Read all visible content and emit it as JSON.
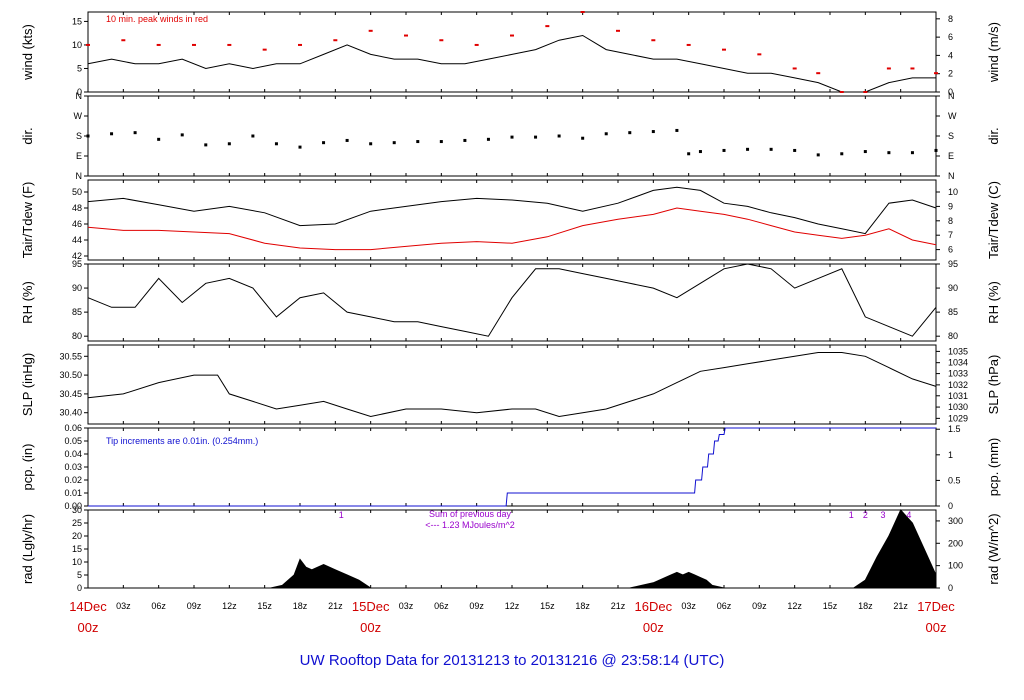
{
  "title": "UW Rooftop Data for 20131213  to  20131216 @ 23:58:14  (UTC)",
  "colors": {
    "trace": "#000000",
    "red": "#e00000",
    "blue": "#1010d0",
    "purple": "#9900cc",
    "major_label": "#d00000"
  },
  "time_axis": {
    "hours_total": 72,
    "major_ticks": [
      {
        "hour": 0,
        "day": "14Dec",
        "zone": "00z"
      },
      {
        "hour": 24,
        "day": "15Dec",
        "zone": "00z"
      },
      {
        "hour": 48,
        "day": "16Dec",
        "zone": "00z"
      },
      {
        "hour": 72,
        "day": "17Dec",
        "zone": "00z"
      }
    ],
    "minor_hours": [
      3,
      6,
      9,
      12,
      15,
      18,
      21
    ],
    "minor_labels": [
      "03z",
      "06z",
      "09z",
      "12z",
      "15z",
      "18z",
      "21z"
    ]
  },
  "chart_data": [
    {
      "type": "line",
      "id": "wind",
      "ylabel": "wind (kts)",
      "ylabel_right": "wind (m/s)",
      "ylim": [
        0,
        17
      ],
      "yticks": [
        "0",
        "5",
        "10",
        "15"
      ],
      "ytick_values": [
        0,
        5,
        10,
        15
      ],
      "yticks_right": [
        "0",
        "2",
        "4",
        "6",
        "8"
      ],
      "ytick_right_values": [
        0,
        3.89,
        7.78,
        11.66,
        15.55
      ],
      "annotation": "10 min. peak winds in red",
      "series": [
        {
          "role": "wind",
          "color": "black",
          "x": [
            0,
            2,
            4,
            6,
            8,
            10,
            12,
            14,
            16,
            18,
            20,
            22,
            24,
            26,
            28,
            30,
            32,
            34,
            36,
            38,
            40,
            42,
            44,
            46,
            48,
            50,
            52,
            54,
            56,
            58,
            60,
            62,
            64,
            66,
            68,
            70,
            72
          ],
          "values": [
            6,
            7,
            6,
            6,
            7,
            5,
            6,
            5,
            6,
            6,
            8,
            10,
            8,
            7,
            7,
            6,
            6,
            7,
            8,
            9,
            11,
            12,
            9,
            8,
            7,
            7,
            6,
            5,
            4,
            4,
            3,
            2,
            0,
            0,
            2,
            3,
            3
          ]
        },
        {
          "role": "peak",
          "color": "red",
          "x": [
            0,
            3,
            6,
            9,
            12,
            15,
            18,
            21,
            24,
            27,
            30,
            33,
            36,
            39,
            42,
            45,
            48,
            51,
            54,
            57,
            60,
            62,
            64,
            66,
            68,
            70,
            72
          ],
          "values": [
            10,
            11,
            10,
            10,
            10,
            9,
            10,
            11,
            13,
            12,
            11,
            10,
            12,
            14,
            17,
            13,
            11,
            10,
            9,
            8,
            5,
            4,
            0,
            0,
            5,
            5,
            4
          ]
        }
      ]
    },
    {
      "type": "scatter",
      "id": "dir",
      "ylabel": "dir.",
      "ylabel_right": "dir.",
      "ylim": [
        0,
        360
      ],
      "yticks": [
        "N",
        "E",
        "S",
        "W",
        "N"
      ],
      "ytick_values": [
        0,
        90,
        180,
        270,
        360
      ],
      "x": [
        0,
        2,
        4,
        6,
        8,
        10,
        12,
        14,
        16,
        18,
        20,
        22,
        24,
        26,
        28,
        30,
        32,
        34,
        36,
        38,
        40,
        42,
        44,
        46,
        48,
        50,
        51,
        52,
        54,
        56,
        58,
        60,
        62,
        64,
        66,
        68,
        70,
        72
      ],
      "values": [
        180,
        190,
        195,
        165,
        185,
        140,
        145,
        180,
        145,
        130,
        150,
        160,
        145,
        150,
        155,
        155,
        160,
        165,
        175,
        175,
        180,
        170,
        190,
        195,
        200,
        205,
        100,
        110,
        115,
        120,
        120,
        115,
        95,
        100,
        110,
        105,
        105,
        115
      ]
    },
    {
      "type": "line",
      "id": "temp",
      "ylabel": "Tair/Tdew (F)",
      "ylabel_right": "Tair/Tdew (C)",
      "ylim": [
        41.5,
        51.5
      ],
      "yticks": [
        "42",
        "44",
        "46",
        "48",
        "50"
      ],
      "ytick_values": [
        42,
        44,
        46,
        48,
        50
      ],
      "yticks_right": [
        "6",
        "7",
        "8",
        "9",
        "10"
      ],
      "ytick_right_values": [
        42.8,
        44.6,
        46.4,
        48.2,
        50
      ],
      "series": [
        {
          "name": "Tair",
          "color": "black",
          "x": [
            0,
            3,
            6,
            9,
            12,
            15,
            18,
            21,
            24,
            27,
            30,
            33,
            36,
            39,
            42,
            45,
            48,
            50,
            52,
            54,
            56,
            58,
            60,
            62,
            64,
            66,
            68,
            70,
            72
          ],
          "values": [
            48.8,
            49.2,
            48.4,
            47.6,
            48.2,
            47.4,
            45.8,
            46.0,
            47.6,
            48.2,
            48.8,
            49.2,
            49.0,
            48.6,
            47.6,
            48.6,
            50.2,
            50.6,
            50.2,
            48.6,
            48.2,
            47.4,
            46.8,
            46.0,
            45.4,
            44.8,
            48.6,
            49.0,
            48.0
          ]
        },
        {
          "name": "Tdew",
          "color": "red",
          "x": [
            0,
            3,
            6,
            9,
            12,
            15,
            18,
            21,
            24,
            27,
            30,
            33,
            36,
            39,
            42,
            45,
            48,
            50,
            52,
            54,
            56,
            58,
            60,
            62,
            64,
            66,
            68,
            70,
            72
          ],
          "values": [
            45.6,
            45.2,
            45.2,
            45.0,
            44.8,
            43.6,
            43.0,
            42.8,
            42.8,
            43.2,
            43.6,
            43.8,
            43.6,
            44.4,
            45.8,
            46.6,
            47.2,
            48.0,
            47.6,
            47.2,
            46.6,
            45.8,
            45.0,
            44.6,
            44.2,
            44.6,
            45.4,
            44.0,
            43.4
          ]
        }
      ]
    },
    {
      "type": "line",
      "id": "rh",
      "ylabel": "RH (%)",
      "ylabel_right": "RH (%)",
      "ylim": [
        79,
        95
      ],
      "yticks": [
        "80",
        "85",
        "90",
        "95"
      ],
      "ytick_values": [
        80,
        85,
        90,
        95
      ],
      "x": [
        0,
        2,
        4,
        6,
        8,
        10,
        12,
        14,
        16,
        18,
        20,
        22,
        24,
        26,
        28,
        30,
        32,
        34,
        36,
        38,
        40,
        42,
        44,
        46,
        48,
        50,
        52,
        54,
        56,
        58,
        60,
        62,
        64,
        66,
        68,
        70,
        72
      ],
      "values": [
        88,
        86,
        86,
        92,
        87,
        91,
        92,
        90,
        84,
        88,
        89,
        85,
        84,
        83,
        83,
        82,
        81,
        80,
        88,
        94,
        94,
        93,
        92,
        91,
        90,
        88,
        91,
        94,
        95,
        94,
        90,
        92,
        94,
        84,
        82,
        80,
        86
      ]
    },
    {
      "type": "line",
      "id": "slp",
      "ylabel": "SLP (inHg)",
      "ylabel_right": "SLP (hPa)",
      "ylim": [
        30.37,
        30.58
      ],
      "yticks": [
        "30.40",
        "30.45",
        "30.50",
        "30.55"
      ],
      "ytick_values": [
        30.4,
        30.45,
        30.5,
        30.55
      ],
      "yticks_right": [
        "1029",
        "1030",
        "1031",
        "1032",
        "1033",
        "1034",
        "1035"
      ],
      "ytick_right_values": [
        30.385,
        30.415,
        30.445,
        30.474,
        30.504,
        30.533,
        30.563
      ],
      "x": [
        0,
        3,
        6,
        9,
        11,
        12,
        14,
        16,
        18,
        20,
        22,
        24,
        27,
        30,
        33,
        36,
        38,
        40,
        42,
        44,
        46,
        48,
        50,
        52,
        54,
        56,
        58,
        60,
        62,
        64,
        66,
        68,
        70,
        72
      ],
      "values": [
        30.44,
        30.45,
        30.48,
        30.5,
        30.5,
        30.45,
        30.43,
        30.41,
        30.42,
        30.43,
        30.41,
        30.39,
        30.41,
        30.41,
        30.4,
        30.41,
        30.41,
        30.39,
        30.4,
        30.41,
        30.43,
        30.45,
        30.48,
        30.51,
        30.52,
        30.53,
        30.54,
        30.55,
        30.56,
        30.56,
        30.55,
        30.52,
        30.49,
        30.47
      ]
    },
    {
      "type": "line",
      "id": "pcp",
      "ylabel": "pcp. (in)",
      "ylabel_right": "pcp. (mm)",
      "ylim": [
        0,
        0.06
      ],
      "yticks": [
        "0.00",
        "0.01",
        "0.02",
        "0.03",
        "0.04",
        "0.05",
        "0.06"
      ],
      "ytick_values": [
        0,
        0.01,
        0.02,
        0.03,
        0.04,
        0.05,
        0.06
      ],
      "yticks_right": [
        "0",
        "0.5",
        "1",
        "1.5"
      ],
      "ytick_right_values": [
        0,
        0.01969,
        0.03937,
        0.05906
      ],
      "annotation": "Tip increments are 0.01in. (0.254mm.)",
      "x": [
        0,
        35.5,
        35.6,
        51.5,
        51.6,
        52.1,
        52.2,
        52.6,
        52.7,
        53.1,
        53.2,
        53.5,
        53.6,
        54.0,
        54.1,
        72
      ],
      "values": [
        0,
        0,
        0.01,
        0.01,
        0.02,
        0.02,
        0.03,
        0.03,
        0.04,
        0.04,
        0.05,
        0.05,
        0.055,
        0.055,
        0.06,
        0.06
      ]
    },
    {
      "type": "area",
      "id": "rad",
      "ylabel": "rad (Lgly/hr)",
      "ylabel_right": "rad (W/m^2)",
      "ylim": [
        0,
        30
      ],
      "yticks": [
        "0",
        "5",
        "10",
        "15",
        "20",
        "25",
        "30"
      ],
      "ytick_values": [
        0,
        5,
        10,
        15,
        20,
        25,
        30
      ],
      "yticks_right": [
        "0",
        "100",
        "200",
        "300"
      ],
      "ytick_right_values": [
        0,
        8.6,
        17.2,
        25.8
      ],
      "annotations": {
        "sum_title": "Sum of previous day",
        "sum_value": "<--- 1.23 MJoules/m^2",
        "markers": [
          "1",
          "1",
          "2",
          "3",
          "4"
        ]
      },
      "x": [
        0,
        15.5,
        16.5,
        17.5,
        18,
        18.5,
        19,
        20,
        21,
        22,
        23,
        24,
        46,
        47,
        48,
        49,
        49.5,
        50,
        50.5,
        51,
        51.5,
        52,
        52.5,
        53,
        54,
        55,
        56,
        57,
        57.5,
        58,
        59,
        60,
        61,
        62,
        63,
        64,
        65,
        66,
        67,
        68,
        69,
        70,
        71,
        72
      ],
      "values": [
        0,
        0,
        1,
        5,
        11,
        8,
        7,
        9,
        7,
        5,
        3,
        0,
        0,
        1,
        2,
        4,
        5,
        6,
        5,
        6,
        5,
        4,
        3,
        1,
        0,
        0,
        0,
        0,
        0,
        0,
        0,
        0,
        0,
        0,
        0,
        0,
        0,
        3,
        12,
        20,
        30,
        25,
        15,
        5
      ]
    }
  ]
}
